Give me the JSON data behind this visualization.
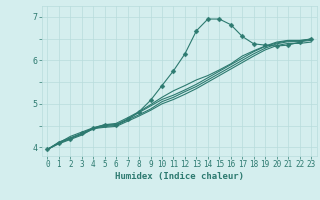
{
  "title": "",
  "xlabel": "Humidex (Indice chaleur)",
  "ylabel": "",
  "bg_color": "#d4eeee",
  "line_color": "#2d7a70",
  "grid_color": "#b8dcdc",
  "xlim": [
    -0.5,
    23.5
  ],
  "ylim": [
    3.8,
    7.25
  ],
  "yticks": [
    4,
    5,
    6,
    7
  ],
  "xticks": [
    0,
    1,
    2,
    3,
    4,
    5,
    6,
    7,
    8,
    9,
    10,
    11,
    12,
    13,
    14,
    15,
    16,
    17,
    18,
    19,
    20,
    21,
    22,
    23
  ],
  "lines": [
    {
      "x": [
        0,
        1,
        2,
        3,
        4,
        5,
        6,
        7,
        8,
        9,
        10,
        11,
        12,
        13,
        14,
        15,
        16,
        17,
        18,
        19,
        20,
        21,
        22,
        23
      ],
      "y": [
        3.95,
        4.1,
        4.2,
        4.3,
        4.42,
        4.5,
        4.52,
        4.65,
        4.8,
        4.95,
        5.1,
        5.2,
        5.32,
        5.45,
        5.6,
        5.75,
        5.9,
        6.05,
        6.2,
        6.32,
        6.4,
        6.45,
        6.45,
        6.48
      ],
      "marker": false
    },
    {
      "x": [
        0,
        1,
        2,
        3,
        4,
        5,
        6,
        7,
        8,
        9,
        10,
        11,
        12,
        13,
        14,
        15,
        16,
        17,
        18,
        19,
        20,
        21,
        22,
        23
      ],
      "y": [
        3.95,
        4.1,
        4.25,
        4.35,
        4.45,
        4.52,
        4.55,
        4.68,
        4.82,
        4.98,
        5.15,
        5.3,
        5.42,
        5.55,
        5.65,
        5.78,
        5.92,
        6.1,
        6.22,
        6.33,
        6.42,
        6.46,
        6.46,
        6.49
      ],
      "marker": false
    },
    {
      "x": [
        0,
        1,
        2,
        3,
        4,
        5,
        6,
        7,
        8,
        9,
        10,
        11,
        12,
        13,
        14,
        15,
        16,
        17,
        18,
        19,
        20,
        21,
        22,
        23
      ],
      "y": [
        3.95,
        4.12,
        4.22,
        4.32,
        4.44,
        4.48,
        4.5,
        4.63,
        4.75,
        4.88,
        5.05,
        5.15,
        5.28,
        5.4,
        5.55,
        5.7,
        5.85,
        6.0,
        6.15,
        6.28,
        6.38,
        6.43,
        6.43,
        6.46
      ],
      "marker": false
    },
    {
      "x": [
        0,
        1,
        2,
        3,
        4,
        5,
        6,
        7,
        8,
        9,
        10,
        11,
        12,
        13,
        14,
        15,
        16,
        17,
        18,
        19,
        20,
        21,
        22,
        23
      ],
      "y": [
        3.95,
        4.08,
        4.18,
        4.28,
        4.43,
        4.46,
        4.48,
        4.6,
        4.72,
        4.85,
        5.0,
        5.1,
        5.22,
        5.35,
        5.5,
        5.65,
        5.8,
        5.95,
        6.1,
        6.24,
        6.34,
        6.39,
        6.39,
        6.42
      ],
      "marker": false
    },
    {
      "x": [
        0,
        1,
        2,
        3,
        4,
        5,
        6,
        7,
        8,
        9,
        10,
        11,
        12,
        13,
        14,
        15,
        16,
        17,
        18,
        19,
        20,
        21,
        22,
        23
      ],
      "y": [
        3.95,
        4.1,
        4.2,
        4.32,
        4.44,
        4.52,
        4.52,
        4.64,
        4.82,
        5.08,
        5.42,
        5.76,
        6.15,
        6.68,
        6.95,
        6.95,
        6.82,
        6.55,
        6.38,
        6.35,
        6.33,
        6.35,
        6.42,
        6.5
      ],
      "marker": true
    }
  ]
}
